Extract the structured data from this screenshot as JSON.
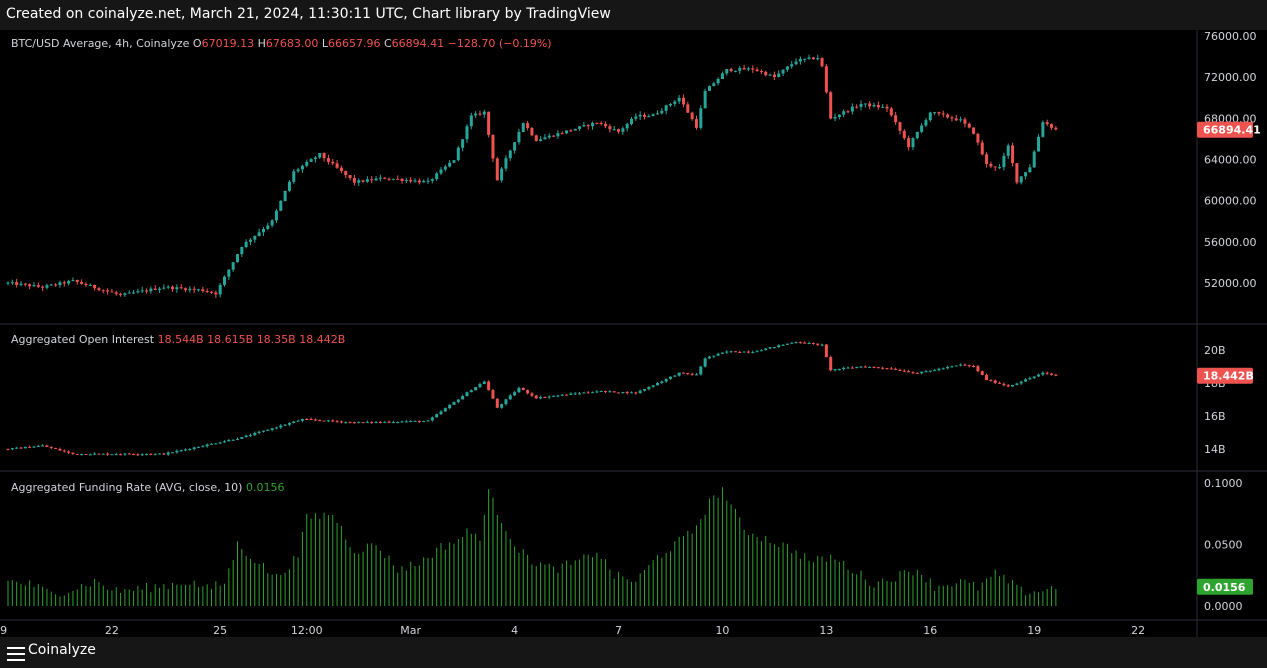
{
  "header": {
    "created": "Created on coinalyze.net, March 21, 2024, 11:30:11 UTC, Chart library by TradingView"
  },
  "footer": {
    "brand": "Coinalyze"
  },
  "colors": {
    "up": "#26a69a",
    "down": "#ef5350",
    "funding": "#2fa32f",
    "grid": "#2a2e39",
    "text": "#d1d4dc"
  },
  "chart_data": [
    {
      "type": "candlestick",
      "title": "BTC/USD Average, 4h, Coinalyze",
      "ohlc_labels": {
        "o_key": "O",
        "o": "67019.13",
        "h_key": "H",
        "h": "67683.00",
        "l_key": "L",
        "l": "66657.96",
        "c_key": "C",
        "c": "66894.41",
        "chg": "−128.70 (−0.19%)"
      },
      "last_price_label": "66894.41",
      "ylim": [
        48000,
        77000
      ],
      "y_ticks": [
        "76000.00",
        "72000.00",
        "68000.00",
        "64000.00",
        "60000.00",
        "56000.00",
        "52000.00"
      ],
      "anchors": [
        [
          0,
          52000
        ],
        [
          8,
          51600
        ],
        [
          15,
          52200
        ],
        [
          26,
          50800
        ],
        [
          36,
          51600
        ],
        [
          45,
          51300
        ],
        [
          48,
          51000
        ],
        [
          54,
          55600
        ],
        [
          61,
          58000
        ],
        [
          66,
          62800
        ],
        [
          72,
          64500
        ],
        [
          80,
          61800
        ],
        [
          87,
          62200
        ],
        [
          97,
          61800
        ],
        [
          103,
          64000
        ],
        [
          107,
          68200
        ],
        [
          110,
          68600
        ],
        [
          113,
          62000
        ],
        [
          115,
          64000
        ],
        [
          119,
          67600
        ],
        [
          122,
          65900
        ],
        [
          136,
          67600
        ],
        [
          141,
          66700
        ],
        [
          145,
          68200
        ],
        [
          149,
          68300
        ],
        [
          155,
          70000
        ],
        [
          159,
          67200
        ],
        [
          161,
          70600
        ],
        [
          166,
          72700
        ],
        [
          172,
          72800
        ],
        [
          177,
          72000
        ],
        [
          182,
          73600
        ],
        [
          187,
          73900
        ],
        [
          188,
          73000
        ],
        [
          190,
          68000
        ],
        [
          197,
          69400
        ],
        [
          203,
          69000
        ],
        [
          208,
          65300
        ],
        [
          213,
          68600
        ],
        [
          220,
          67800
        ],
        [
          223,
          66600
        ],
        [
          226,
          63500
        ],
        [
          229,
          63200
        ],
        [
          231,
          65300
        ],
        [
          233,
          61900
        ],
        [
          236,
          63300
        ],
        [
          239,
          67700
        ],
        [
          242,
          66900
        ]
      ]
    },
    {
      "type": "candlestick",
      "title": "Aggregated Open Interest",
      "values_text": [
        "18.544B",
        "18.615B",
        "18.35B",
        "18.442B"
      ],
      "last_value_label": "18.442B",
      "ylim": [
        12800,
        21400
      ],
      "y_ticks": [
        "20B",
        "18B",
        "16B",
        "14B"
      ],
      "anchors": [
        [
          0,
          14.0
        ],
        [
          8,
          14.2
        ],
        [
          15,
          13.7
        ],
        [
          36,
          13.7
        ],
        [
          54,
          14.7
        ],
        [
          68,
          15.8
        ],
        [
          80,
          15.6
        ],
        [
          97,
          15.7
        ],
        [
          107,
          17.6
        ],
        [
          110,
          18.1
        ],
        [
          113,
          16.5
        ],
        [
          118,
          17.7
        ],
        [
          122,
          17.1
        ],
        [
          136,
          17.5
        ],
        [
          145,
          17.4
        ],
        [
          155,
          18.6
        ],
        [
          159,
          18.5
        ],
        [
          161,
          19.5
        ],
        [
          166,
          19.9
        ],
        [
          172,
          19.9
        ],
        [
          182,
          20.5
        ],
        [
          188,
          20.3
        ],
        [
          190,
          18.8
        ],
        [
          197,
          19.0
        ],
        [
          203,
          18.9
        ],
        [
          210,
          18.6
        ],
        [
          214,
          18.8
        ],
        [
          220,
          19.1
        ],
        [
          223,
          19.0
        ],
        [
          226,
          18.2
        ],
        [
          231,
          17.8
        ],
        [
          234,
          18.1
        ],
        [
          239,
          18.6
        ],
        [
          242,
          18.44
        ]
      ]
    },
    {
      "type": "bar",
      "title": "Aggregated Funding Rate (AVG, close, 10)",
      "current_value_text": "0.0156",
      "last_value_label": "0.0156",
      "ylim": [
        -0.004,
        0.104
      ],
      "y_ticks": [
        "0.1000",
        "0.0500",
        "0.0000"
      ],
      "anchors": [
        [
          0,
          0.02
        ],
        [
          5,
          0.018
        ],
        [
          10,
          0.01
        ],
        [
          15,
          0.014
        ],
        [
          20,
          0.02
        ],
        [
          25,
          0.012
        ],
        [
          30,
          0.014
        ],
        [
          35,
          0.016
        ],
        [
          42,
          0.02
        ],
        [
          46,
          0.014
        ],
        [
          50,
          0.019
        ],
        [
          53,
          0.05
        ],
        [
          57,
          0.038
        ],
        [
          62,
          0.023
        ],
        [
          67,
          0.041
        ],
        [
          69,
          0.072
        ],
        [
          75,
          0.075
        ],
        [
          80,
          0.045
        ],
        [
          85,
          0.05
        ],
        [
          90,
          0.03
        ],
        [
          95,
          0.035
        ],
        [
          100,
          0.048
        ],
        [
          104,
          0.054
        ],
        [
          106,
          0.06
        ],
        [
          109,
          0.057
        ],
        [
          111,
          0.092
        ],
        [
          114,
          0.07
        ],
        [
          118,
          0.045
        ],
        [
          122,
          0.035
        ],
        [
          126,
          0.03
        ],
        [
          132,
          0.036
        ],
        [
          136,
          0.045
        ],
        [
          140,
          0.025
        ],
        [
          145,
          0.02
        ],
        [
          150,
          0.04
        ],
        [
          154,
          0.05
        ],
        [
          158,
          0.06
        ],
        [
          162,
          0.084
        ],
        [
          165,
          0.095
        ],
        [
          170,
          0.062
        ],
        [
          175,
          0.055
        ],
        [
          180,
          0.048
        ],
        [
          186,
          0.036
        ],
        [
          190,
          0.04
        ],
        [
          195,
          0.03
        ],
        [
          200,
          0.018
        ],
        [
          205,
          0.024
        ],
        [
          210,
          0.03
        ],
        [
          214,
          0.016
        ],
        [
          220,
          0.02
        ],
        [
          224,
          0.015
        ],
        [
          228,
          0.026
        ],
        [
          231,
          0.02
        ],
        [
          234,
          0.012
        ],
        [
          238,
          0.012
        ],
        [
          242,
          0.0156
        ]
      ]
    }
  ],
  "x_axis": {
    "ticks": [
      {
        "bar": -1,
        "label": "9"
      },
      {
        "bar": 24,
        "label": "22"
      },
      {
        "bar": 49,
        "label": "25"
      },
      {
        "bar": 69,
        "label": "12:00"
      },
      {
        "bar": 93,
        "label": "Mar"
      },
      {
        "bar": 117,
        "label": "4"
      },
      {
        "bar": 141,
        "label": "7"
      },
      {
        "bar": 165,
        "label": "10"
      },
      {
        "bar": 189,
        "label": "13"
      },
      {
        "bar": 213,
        "label": "16"
      },
      {
        "bar": 237,
        "label": "19"
      },
      {
        "bar": 261,
        "label": "22"
      }
    ]
  }
}
